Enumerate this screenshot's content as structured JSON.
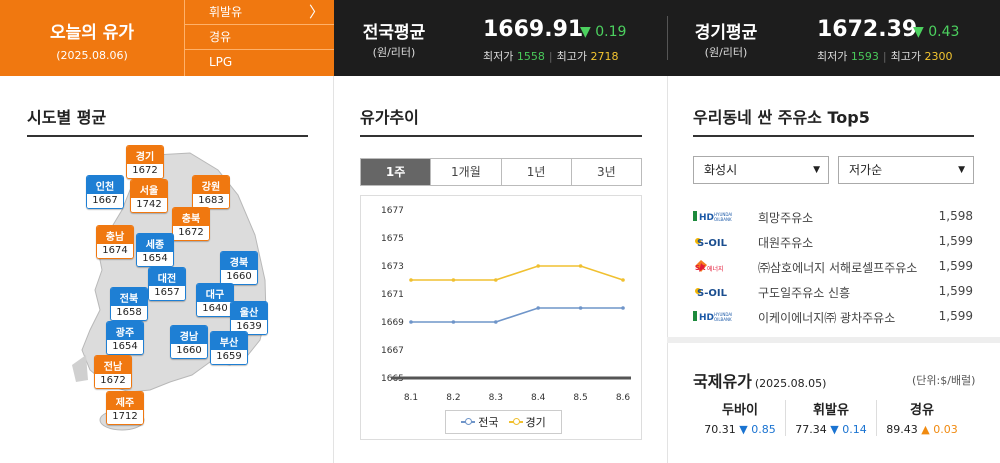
{
  "today": {
    "title": "오늘의 유가",
    "date": "(2025.08.06)"
  },
  "fuel_menu": [
    {
      "label": "휘발유",
      "chevron": "〉"
    },
    {
      "label": "경유"
    },
    {
      "label": "LPG"
    }
  ],
  "national": {
    "label": "전국평균",
    "unit": "(원/리터)",
    "price": "1669.91",
    "change": "▼ 0.19",
    "min_label": "최저가",
    "min": "1558",
    "max_label": "최고가",
    "max": "2718"
  },
  "gyeonggi": {
    "label": "경기평균",
    "unit": "(원/리터)",
    "price": "1672.39",
    "change": "▼ 0.43",
    "min_label": "최저가",
    "min": "1593",
    "max_label": "최고가",
    "max": "2300"
  },
  "regional": {
    "title": "시도별 평균",
    "markers": [
      {
        "name": "경기",
        "value": "1672",
        "color": "orange"
      },
      {
        "name": "인천",
        "value": "1667",
        "color": "blue"
      },
      {
        "name": "서울",
        "value": "1742",
        "color": "orange"
      },
      {
        "name": "강원",
        "value": "1683",
        "color": "orange"
      },
      {
        "name": "충북",
        "value": "1672",
        "color": "orange"
      },
      {
        "name": "충남",
        "value": "1674",
        "color": "orange"
      },
      {
        "name": "세종",
        "value": "1654",
        "color": "blue"
      },
      {
        "name": "경북",
        "value": "1660",
        "color": "blue"
      },
      {
        "name": "대전",
        "value": "1657",
        "color": "blue"
      },
      {
        "name": "전북",
        "value": "1658",
        "color": "blue"
      },
      {
        "name": "대구",
        "value": "1640",
        "color": "blue"
      },
      {
        "name": "울산",
        "value": "1639",
        "color": "blue"
      },
      {
        "name": "광주",
        "value": "1654",
        "color": "blue"
      },
      {
        "name": "경남",
        "value": "1660",
        "color": "blue"
      },
      {
        "name": "부산",
        "value": "1659",
        "color": "blue"
      },
      {
        "name": "전남",
        "value": "1672",
        "color": "orange"
      },
      {
        "name": "제주",
        "value": "1712",
        "color": "orange"
      }
    ]
  },
  "trend": {
    "title": "유가추이",
    "tabs": [
      "1주",
      "1개월",
      "1년",
      "3년"
    ],
    "active_tab": "1주"
  },
  "chart_data": {
    "type": "line",
    "x": [
      "8.1",
      "8.2",
      "8.3",
      "8.4",
      "8.5",
      "8.6"
    ],
    "ylim": [
      1665,
      1677
    ],
    "yticks": [
      1665,
      1667,
      1669,
      1671,
      1673,
      1675,
      1677
    ],
    "grid": false,
    "legend": "bottom",
    "series": [
      {
        "name": "전국",
        "color": "#6f95c9",
        "values": [
          1669,
          1669,
          1669,
          1670,
          1670,
          1670
        ]
      },
      {
        "name": "경기",
        "color": "#f0c030",
        "values": [
          1672,
          1672,
          1672,
          1673,
          1673,
          1672
        ]
      }
    ]
  },
  "top5": {
    "title": "우리동네 싼 주유소 Top5",
    "region_select": "화성시",
    "sort_select": "저가순",
    "stations": [
      {
        "brand": "HD HYUNDAI OILBANK",
        "logo": "hd-oilbank-logo",
        "name": "희망주유소",
        "price": "1,598"
      },
      {
        "brand": "S-OIL",
        "logo": "s-oil-logo",
        "name": "대원주유소",
        "price": "1,599"
      },
      {
        "brand": "SK에너지",
        "logo": "sk-energy-logo",
        "name": "㈜삼호에너지 서해로셀프주유소",
        "price": "1,599"
      },
      {
        "brand": "S-OIL",
        "logo": "s-oil-logo",
        "name": "구도일주유소 신흥",
        "price": "1,599"
      },
      {
        "brand": "HD HYUNDAI OILBANK",
        "logo": "hd-oilbank-logo",
        "name": "이케이에너지㈜ 광차주유소",
        "price": "1,599"
      }
    ]
  },
  "intl": {
    "title": "국제유가",
    "date": "(2025.08.05)",
    "unit": "(단위:$/배럴)",
    "items": [
      {
        "name": "두바이",
        "value": "70.31",
        "change": "▼ 0.85",
        "dir": "down"
      },
      {
        "name": "휘발유",
        "value": "77.34",
        "change": "▼ 0.14",
        "dir": "down"
      },
      {
        "name": "경유",
        "value": "89.43",
        "change": "▲ 0.03",
        "dir": "up"
      }
    ]
  },
  "colors": {
    "orange": "#f07810",
    "blue": "#1e7fd4",
    "dark_bar": "#1d1d1d",
    "up_green": "#4cd15f"
  }
}
